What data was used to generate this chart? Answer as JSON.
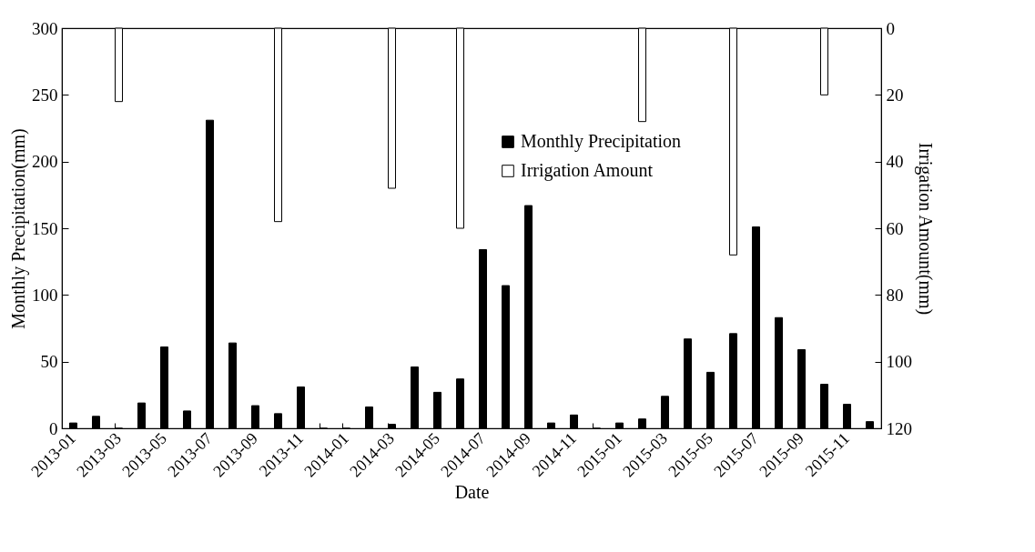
{
  "chart_data": {
    "type": "bar",
    "xlabel": "Date",
    "ylabel": "Monthly Precipitation(mm)",
    "y2label": "Irrigation Amount(mm)",
    "categories": [
      "2013-01",
      null,
      "2013-03",
      null,
      "2013-05",
      null,
      "2013-07",
      null,
      "2013-09",
      null,
      "2013-11",
      null,
      "2014-01",
      null,
      "2014-03",
      null,
      "2014-05",
      null,
      "2014-07",
      null,
      "2014-09",
      null,
      "2014-11",
      null,
      "2015-01",
      null,
      "2015-03",
      null,
      "2015-05",
      null,
      "2015-07",
      null,
      "2015-09",
      null,
      "2015-11",
      null
    ],
    "series": [
      {
        "name": "Monthly Precipitation",
        "color": "#000000",
        "values": [
          4,
          9,
          0,
          19,
          61,
          13,
          231,
          64,
          17,
          11,
          31,
          0,
          0,
          16,
          3,
          46,
          27,
          37,
          134,
          107,
          167,
          4,
          10,
          0,
          4,
          7,
          24,
          67,
          42,
          71,
          151,
          83,
          59,
          33,
          18,
          5
        ]
      },
      {
        "name": "Irrigation Amount",
        "color": "#ffffff",
        "axis": "y2",
        "values": [
          null,
          null,
          22,
          null,
          null,
          null,
          null,
          null,
          null,
          58,
          null,
          null,
          null,
          null,
          48,
          null,
          null,
          60,
          null,
          null,
          null,
          null,
          null,
          null,
          null,
          28,
          null,
          null,
          null,
          68,
          null,
          null,
          null,
          20,
          null,
          null
        ]
      }
    ],
    "ylim": [
      0,
      300
    ],
    "yticks": [
      0,
      50,
      100,
      150,
      200,
      250,
      300
    ],
    "y2lim": [
      120,
      0
    ],
    "y2ticks": [
      0,
      20,
      40,
      60,
      80,
      100,
      120
    ],
    "legend": "top",
    "grid": false
  }
}
